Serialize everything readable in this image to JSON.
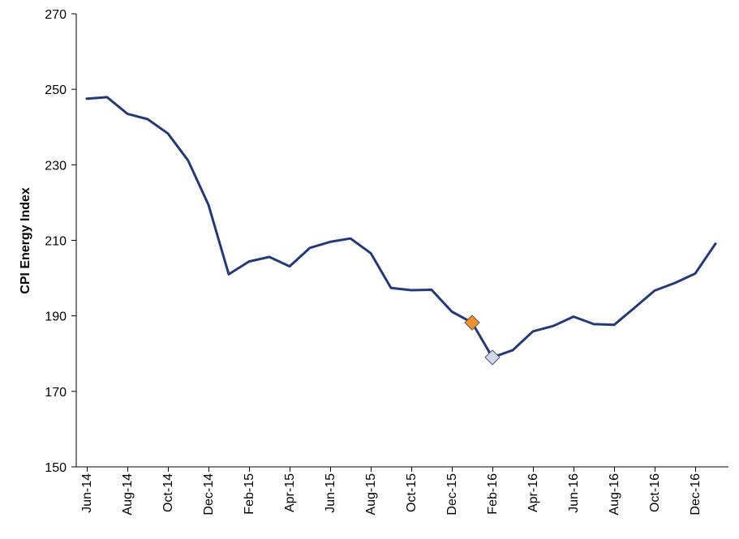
{
  "chart_data": {
    "type": "line",
    "title": "",
    "xlabel": "",
    "ylabel": "CPI Energy Index",
    "ylim": [
      150,
      270
    ],
    "yticks": [
      150,
      170,
      190,
      210,
      230,
      250,
      270
    ],
    "categories": [
      "Jun-14",
      "Jul-14",
      "Aug-14",
      "Sep-14",
      "Oct-14",
      "Nov-14",
      "Dec-14",
      "Jan-15",
      "Feb-15",
      "Mar-15",
      "Apr-15",
      "May-15",
      "Jun-15",
      "Jul-15",
      "Aug-15",
      "Sep-15",
      "Oct-15",
      "Nov-15",
      "Dec-15",
      "Jan-16",
      "Feb-16",
      "Mar-16",
      "Apr-16",
      "May-16",
      "Jun-16",
      "Jul-16",
      "Aug-16",
      "Sep-16",
      "Oct-16",
      "Nov-16",
      "Dec-16",
      "Jan-17"
    ],
    "xtick_labels": [
      "Jun-14",
      "Aug-14",
      "Oct-14",
      "Dec-14",
      "Feb-15",
      "Apr-15",
      "Jun-15",
      "Aug-15",
      "Oct-15",
      "Dec-15",
      "Feb-16",
      "Apr-16",
      "Jun-16",
      "Aug-16",
      "Oct-16",
      "Dec-16"
    ],
    "series": [
      {
        "color": "#233a7a",
        "values": [
          247.5,
          247.9,
          243.5,
          242.1,
          238.3,
          231.1,
          219.4,
          201.0,
          204.4,
          205.6,
          203.1,
          208.0,
          209.6,
          210.5,
          206.6,
          197.4,
          196.8,
          196.9,
          191.1,
          188.2,
          179.0,
          180.9,
          185.9,
          187.3,
          189.8,
          187.8,
          187.6,
          192.1,
          196.7,
          198.7,
          201.2,
          209.1
        ]
      }
    ],
    "markers": [
      {
        "category": "Jan-16",
        "value": 188.2,
        "shape": "diamond",
        "color": "#f0902a"
      },
      {
        "category": "Feb-16",
        "value": 179.0,
        "shape": "diamond",
        "color": "#d3d7ee"
      }
    ],
    "grid": false,
    "legend": "none"
  }
}
